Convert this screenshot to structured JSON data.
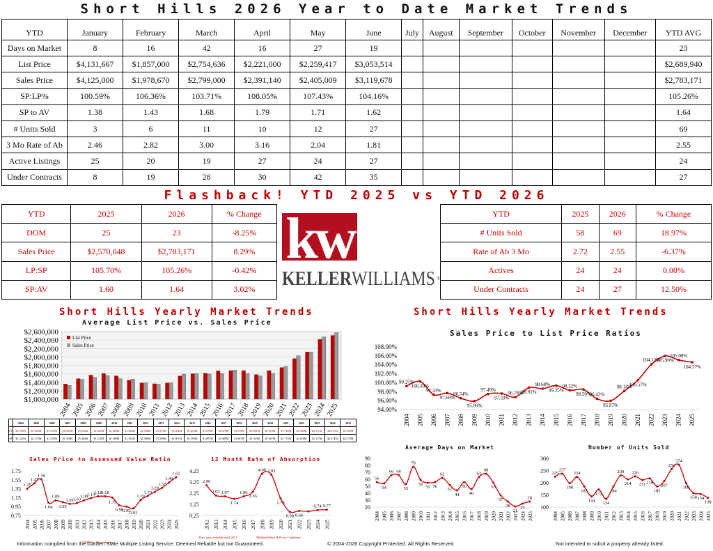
{
  "main_title": "Short Hills 2026 Year to Date Market Trends",
  "ytd_table": {
    "header": [
      "YTD",
      "January",
      "February",
      "March",
      "April",
      "May",
      "June",
      "July",
      "August",
      "September",
      "October",
      "November",
      "December",
      "YTD AVG"
    ],
    "rows": [
      [
        "Days on Market",
        "8",
        "16",
        "42",
        "16",
        "27",
        "19",
        "",
        "",
        "",
        "",
        "",
        "",
        "23"
      ],
      [
        "List Price",
        "$4,131,667",
        "$1,857,000",
        "$2,754,636",
        "$2,221,000",
        "$2,259,417",
        "$3,053,514",
        "",
        "",
        "",
        "",
        "",
        "",
        "$2,689,940"
      ],
      [
        "Sales Price",
        "$4,125,000",
        "$1,978,670",
        "$2,799,000",
        "$2,391,140",
        "$2,405,009",
        "$3,119,678",
        "",
        "",
        "",
        "",
        "",
        "",
        "$2,783,171"
      ],
      [
        "SP:LP%",
        "100.59%",
        "106.36%",
        "103.71%",
        "108.05%",
        "107.43%",
        "104.16%",
        "",
        "",
        "",
        "",
        "",
        "",
        "105.26%"
      ],
      [
        "SP to AV",
        "1.38",
        "1.43",
        "1.68",
        "1.79",
        "1.71",
        "1.62",
        "",
        "",
        "",
        "",
        "",
        "",
        "1.64"
      ],
      [
        "# Units Sold",
        "3",
        "6",
        "11",
        "10",
        "12",
        "27",
        "",
        "",
        "",
        "",
        "",
        "",
        "69"
      ],
      [
        "3 Mo Rate of Ab",
        "2.46",
        "2.82",
        "3.00",
        "3.16",
        "2.04",
        "1.81",
        "",
        "",
        "",
        "",
        "",
        "",
        "2.55"
      ],
      [
        "Active Listings",
        "25",
        "20",
        "19",
        "27",
        "24",
        "27",
        "",
        "",
        "",
        "",
        "",
        "",
        "24"
      ],
      [
        "Under Contracts",
        "8",
        "19",
        "28",
        "30",
        "42",
        "35",
        "",
        "",
        "",
        "",
        "",
        "",
        "27"
      ]
    ]
  },
  "flashback_title": "Flashback!  YTD 2025 vs YTD 2026",
  "flash_left": {
    "header": [
      "YTD",
      "2025",
      "2026",
      "% Change"
    ],
    "rows": [
      [
        "DOM",
        "25",
        "23",
        "-8.25%"
      ],
      [
        "Sales Price",
        "$2,570,048",
        "$2,783,171",
        "8.29%"
      ],
      [
        "LP:SP",
        "105.70%",
        "105.26%",
        "-0.42%"
      ],
      [
        "SP:AV",
        "1.60",
        "1.64",
        "3.02%"
      ]
    ]
  },
  "flash_right": {
    "header": [
      "YTD",
      "2025",
      "2026",
      "% Change"
    ],
    "rows": [
      [
        "# Units Sold",
        "58",
        "69",
        "18.97%"
      ],
      [
        "Rate of Ab 3 Mo",
        "2.72",
        "2.55",
        "-6.37%"
      ],
      [
        "Actives",
        "24",
        "24",
        "0.00%"
      ],
      [
        "Under Contracts",
        "24",
        "27",
        "12.50%"
      ]
    ]
  },
  "logo": {
    "mark": "kw",
    "word_bold": "KELLER",
    "word_light": "WILLIAMS",
    "reg": "®",
    "color": "#b40f1e"
  },
  "left_section_title": "Short Hills Yearly Market Trends",
  "right_section_title": "Short Hills Yearly Market Trends",
  "strip": {
    "years": [
      "2004",
      "2005",
      "2006",
      "2007",
      "2008",
      "2009",
      "2010",
      "2011",
      "2012",
      "2013",
      "2014",
      "2015",
      "2016",
      "2017",
      "2018",
      "2019",
      "2020",
      "2021",
      "2022",
      "2023",
      "2024",
      "2025"
    ],
    "lp_label": "LP",
    "sp_label": "SP",
    "lp": [
      "$1.359M",
      "$1.485M",
      "$1.570M",
      "$1.607M",
      "$1.552M",
      "$1.449M",
      "$1.382M",
      "$1.364M",
      "$1.382M",
      "$1.551M",
      "$1.602M",
      "$1.615M",
      "$1.670M",
      "$1.675M",
      "$1.676M",
      "$1.581M",
      "$1.676M",
      "$1.749M",
      "$1.962M",
      "$2.117M",
      "$2.417M",
      "$2.509M"
    ],
    "sp": [
      "$1.325M",
      "$1.470M",
      "$1.515M",
      "$1.558M",
      "$1.484M",
      "$1.474M",
      "$1.386M",
      "$1.355M",
      "$1.386M",
      "$1.589M",
      "$1.607M",
      "$1.595M",
      "$1.607M",
      "$1.688M",
      "$1.607M",
      "$1.550M",
      "$1.607M",
      "$1.772M",
      "$2.028M",
      "$2.117M",
      "$2.474M",
      "$2.574M"
    ]
  },
  "chart_data": [
    {
      "type": "bar",
      "title": "Average List Price vs. Sales Price",
      "categories": [
        "2004",
        "2005",
        "2006",
        "2007",
        "2008",
        "2009",
        "2010",
        "2011",
        "2012",
        "2013",
        "2014",
        "2015",
        "2016",
        "2017",
        "2018",
        "2019",
        "2020",
        "2021",
        "2022",
        "2023",
        "2024",
        "2025"
      ],
      "series": [
        {
          "name": "List Price",
          "color": "#c00000",
          "values": [
            1359000,
            1485000,
            1570000,
            1607000,
            1552000,
            1449000,
            1382000,
            1364000,
            1382000,
            1551000,
            1602000,
            1615000,
            1670000,
            1675000,
            1676000,
            1581000,
            1676000,
            1749000,
            1962000,
            2117000,
            2417000,
            2509000
          ]
        },
        {
          "name": "Sales Price",
          "color": "#999999",
          "values": [
            1325000,
            1470000,
            1515000,
            1558000,
            1484000,
            1474000,
            1386000,
            1355000,
            1386000,
            1589000,
            1607000,
            1595000,
            1607000,
            1688000,
            1607000,
            1550000,
            1607000,
            1772000,
            2028000,
            2117000,
            2474000,
            2574000
          ]
        }
      ],
      "yticks": [
        "$2,600,000",
        "$2,400,000",
        "$2,200,000",
        "$2,000,000",
        "$1,800,000",
        "$1,600,000",
        "$1,400,000",
        "$1,200,000",
        "$1,000,000"
      ],
      "ylim": [
        1000000,
        2600000
      ],
      "legend": "top-left"
    },
    {
      "type": "line",
      "title": "Sales Price to List Price Ratios",
      "x": [
        "2004",
        "2005",
        "2006",
        "2007",
        "2008",
        "2009",
        "2010",
        "2011",
        "2012",
        "2013",
        "2014",
        "2015",
        "2016",
        "2017",
        "2018",
        "2019",
        "2020",
        "2021",
        "2022",
        "2023",
        "2024",
        "2025"
      ],
      "values": [
        99.25,
        100.3,
        97.33,
        97.69,
        96.54,
        95.89,
        97.49,
        97.59,
        96.78,
        98.91,
        98.68,
        99.35,
        98.32,
        98.5,
        96.42,
        95.97,
        98.14,
        100.57,
        104.12,
        105.99,
        105.08,
        104.57
      ],
      "labels": [
        "99.25%",
        "100.30%",
        "97.33%",
        "97.69%",
        "96.54%",
        "95.89%",
        "97.49%",
        "97.59%",
        "96.78%",
        "98.91%",
        "98.68%",
        "99.35%",
        "98.32%",
        "98.50%",
        "96.42%",
        "95.97%",
        "98.14%",
        "100.57%",
        "104.12%",
        "105.99%",
        "105.08%",
        "104.57%"
      ],
      "yticks": [
        "108.00%",
        "106.00%",
        "104.00%",
        "102.00%",
        "100.00%",
        "98.00%",
        "96.00%",
        "94.00%"
      ],
      "ylim": [
        94,
        108
      ]
    },
    {
      "type": "line",
      "title": "Sales Price to Assessed Value Ratio",
      "x": [
        "2004",
        "2005",
        "2006",
        "2007",
        "2008",
        "2009",
        "2010",
        "2011",
        "2012",
        "2013",
        "2014",
        "2015",
        "2016",
        "2017",
        "2018",
        "2019",
        "2020",
        "2021",
        "2022",
        "2023",
        "2024",
        "2025"
      ],
      "values": [
        1.35,
        1.47,
        1.56,
        1.04,
        1.09,
        1.05,
        1.01,
        1.03,
        1.09,
        1.14,
        1.18,
        1.18,
        1.15,
        0.98,
        0.95,
        0.91,
        1.1,
        1.19,
        1.28,
        1.37,
        1.49,
        1.61
      ],
      "labels": [
        "1.35",
        "1.47",
        "1.56",
        "1.04",
        "1.09",
        "1.05",
        "1.01",
        "1.03",
        "1.09",
        "1.14",
        "1.18",
        "1.18",
        "1.15",
        "0.98",
        "0.95",
        "0.91",
        "1.10",
        "1.19",
        "1.28",
        "1.37",
        "1.49",
        "1.61"
      ],
      "yticks": [
        "1.75",
        "1.55",
        "1.35",
        "1.15",
        "0.95",
        "0.75"
      ],
      "ylim": [
        0.75,
        1.75
      ],
      "note": "*2007 Tax Re-evaluation"
    },
    {
      "type": "line",
      "title": "12 Month Rate of Absorption",
      "x": [
        "2012",
        "2013",
        "2014",
        "2015",
        "2016",
        "2017",
        "2018",
        "2019",
        "2020",
        "2021",
        "2022",
        "2023",
        "2024",
        "2025"
      ],
      "values": [
        2.96,
        2.05,
        1.97,
        1.74,
        1.96,
        2.36,
        4.0,
        3.92,
        1.78,
        0.58,
        0.66,
        0.62,
        0.74,
        0.77
      ],
      "labels": [
        "2.96",
        "2.05",
        "1.97",
        "1.74",
        "1.96",
        "2.36",
        "4.00",
        "3.92",
        "1.78",
        "0.58",
        "0.66",
        "",
        "0.74",
        "0.77"
      ],
      "yticks": [
        "4.25",
        "3.25",
        "2.25",
        "1.25",
        "0.25"
      ],
      "ylim": [
        0.25,
        4.25
      ],
      "note_left": "Data only available until 2013",
      "note_right": "Millburn/Short Hills are Combined"
    },
    {
      "type": "line",
      "title": "Average Days on Market",
      "x": [
        "2004",
        "2005",
        "2006",
        "2007",
        "2008",
        "2009",
        "2010",
        "2011",
        "2012",
        "2013",
        "2014",
        "2015",
        "2016",
        "2017",
        "2018",
        "2019",
        "2020",
        "2021",
        "2022",
        "2023",
        "2024",
        "2025"
      ],
      "values": [
        56,
        54,
        66,
        66,
        53,
        78,
        59,
        55,
        56,
        62,
        52,
        44,
        56,
        46,
        63,
        68,
        55,
        37,
        28,
        21,
        25,
        28
      ],
      "yticks": [
        "90",
        "80",
        "70",
        "60",
        "50",
        "40",
        "30",
        "20"
      ],
      "ylim": [
        20,
        90
      ]
    },
    {
      "type": "line",
      "title": "Number of Units Sold",
      "x": [
        "2004",
        "2005",
        "2006",
        "2007",
        "2008",
        "2009",
        "2010",
        "2011",
        "2012",
        "2013",
        "2014",
        "2015",
        "2016",
        "2017",
        "2018",
        "2019",
        "2020",
        "2021",
        "2022",
        "2023",
        "2024",
        "2025"
      ],
      "values": [
        225,
        237,
        198,
        224,
        185,
        144,
        172,
        134,
        184,
        230,
        214,
        226,
        211,
        218,
        185,
        207,
        256,
        274,
        198,
        158,
        154,
        138
      ],
      "yticks": [
        "300",
        "250",
        "200",
        "150",
        "100"
      ],
      "ylim": [
        100,
        300
      ]
    }
  ],
  "footer": {
    "left": "Information compiled from the Garden State Multiple Listing Service.  Deemed Reliable but not Guaranteed.",
    "center": "© 2004-2026 Copyright Protected.  All Rights Reserved",
    "right": "Not intended to solicit a property already listed."
  }
}
